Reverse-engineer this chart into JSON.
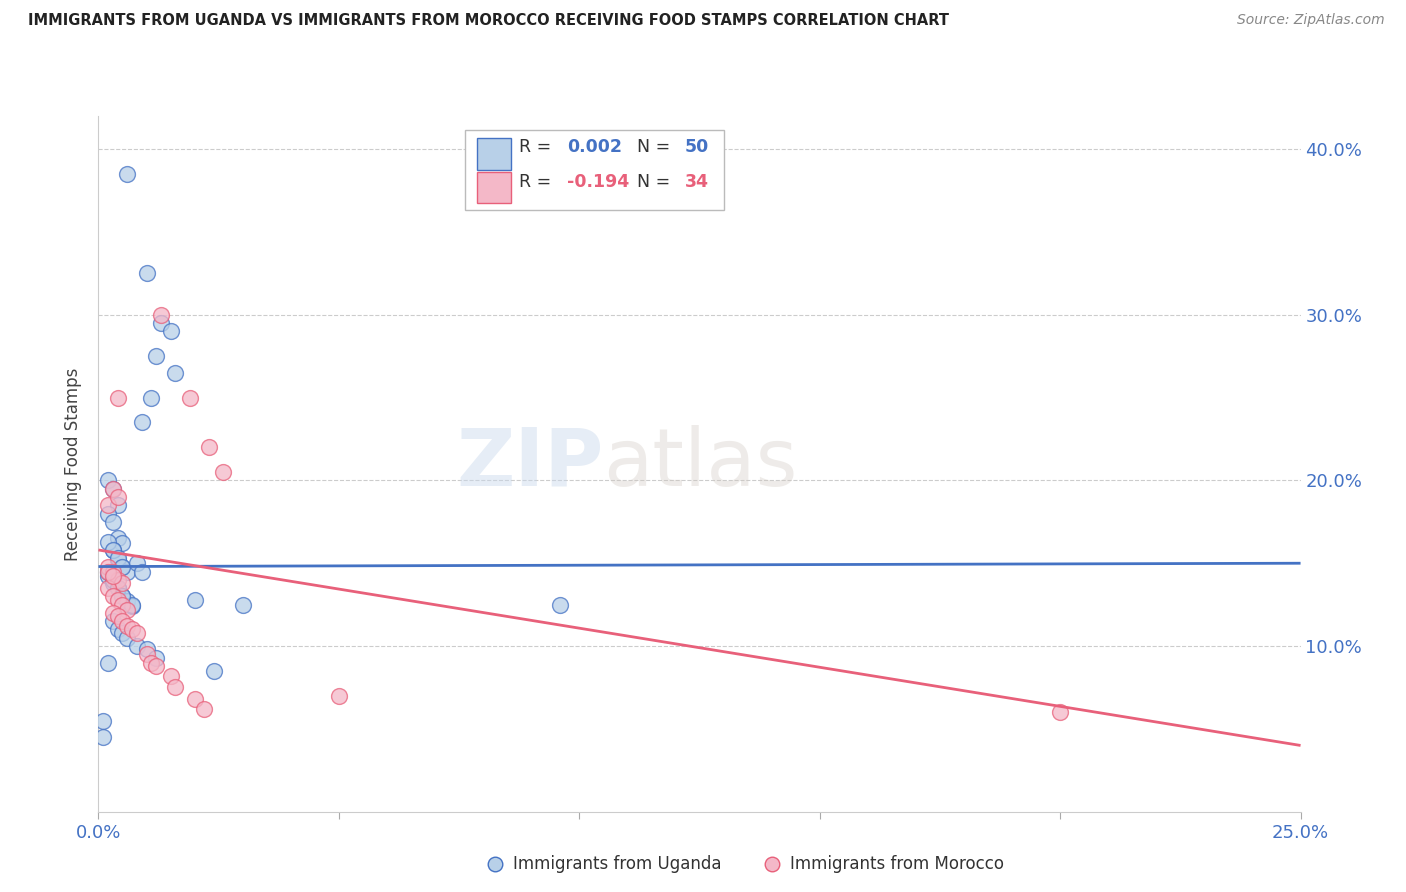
{
  "title": "IMMIGRANTS FROM UGANDA VS IMMIGRANTS FROM MOROCCO RECEIVING FOOD STAMPS CORRELATION CHART",
  "source": "Source: ZipAtlas.com",
  "ylabel": "Receiving Food Stamps",
  "legend_label1": "Immigrants from Uganda",
  "legend_label2": "Immigrants from Morocco",
  "color_uganda_fill": "#b8d0e8",
  "color_uganda_edge": "#4472c4",
  "color_morocco_fill": "#f4b8c8",
  "color_morocco_edge": "#e8607a",
  "color_uganda_line": "#4472c4",
  "color_morocco_line": "#e8607a",
  "color_axis_text": "#4472c4",
  "xlim": [
    0.0,
    0.25
  ],
  "ylim": [
    0.0,
    0.42
  ],
  "uganda_x": [
    0.006,
    0.01,
    0.013,
    0.015,
    0.012,
    0.016,
    0.011,
    0.009,
    0.002,
    0.003,
    0.004,
    0.002,
    0.003,
    0.004,
    0.005,
    0.003,
    0.004,
    0.005,
    0.006,
    0.002,
    0.003,
    0.004,
    0.005,
    0.006,
    0.007,
    0.002,
    0.003,
    0.004,
    0.005,
    0.007,
    0.008,
    0.009,
    0.003,
    0.004,
    0.005,
    0.006,
    0.008,
    0.01,
    0.012,
    0.002,
    0.002,
    0.003,
    0.004,
    0.005,
    0.02,
    0.024,
    0.03,
    0.096,
    0.001,
    0.001
  ],
  "uganda_y": [
    0.385,
    0.325,
    0.295,
    0.29,
    0.275,
    0.265,
    0.25,
    0.235,
    0.2,
    0.195,
    0.185,
    0.18,
    0.175,
    0.165,
    0.162,
    0.158,
    0.152,
    0.148,
    0.145,
    0.142,
    0.138,
    0.135,
    0.13,
    0.127,
    0.124,
    0.163,
    0.158,
    0.153,
    0.148,
    0.125,
    0.15,
    0.145,
    0.115,
    0.11,
    0.108,
    0.105,
    0.1,
    0.098,
    0.093,
    0.09,
    0.145,
    0.14,
    0.135,
    0.13,
    0.128,
    0.085,
    0.125,
    0.125,
    0.055,
    0.045
  ],
  "morocco_x": [
    0.013,
    0.004,
    0.019,
    0.023,
    0.026,
    0.002,
    0.003,
    0.004,
    0.002,
    0.003,
    0.004,
    0.005,
    0.002,
    0.003,
    0.004,
    0.005,
    0.006,
    0.003,
    0.004,
    0.005,
    0.006,
    0.007,
    0.008,
    0.002,
    0.003,
    0.01,
    0.011,
    0.012,
    0.015,
    0.016,
    0.02,
    0.022,
    0.2,
    0.05
  ],
  "morocco_y": [
    0.3,
    0.25,
    0.25,
    0.22,
    0.205,
    0.185,
    0.195,
    0.19,
    0.148,
    0.145,
    0.14,
    0.138,
    0.135,
    0.13,
    0.128,
    0.125,
    0.122,
    0.12,
    0.118,
    0.115,
    0.112,
    0.11,
    0.108,
    0.145,
    0.142,
    0.095,
    0.09,
    0.088,
    0.082,
    0.075,
    0.068,
    0.062,
    0.06,
    0.07
  ],
  "uganda_line_y0": 0.148,
  "uganda_line_y1": 0.15,
  "morocco_line_y0": 0.158,
  "morocco_line_y1": 0.04
}
